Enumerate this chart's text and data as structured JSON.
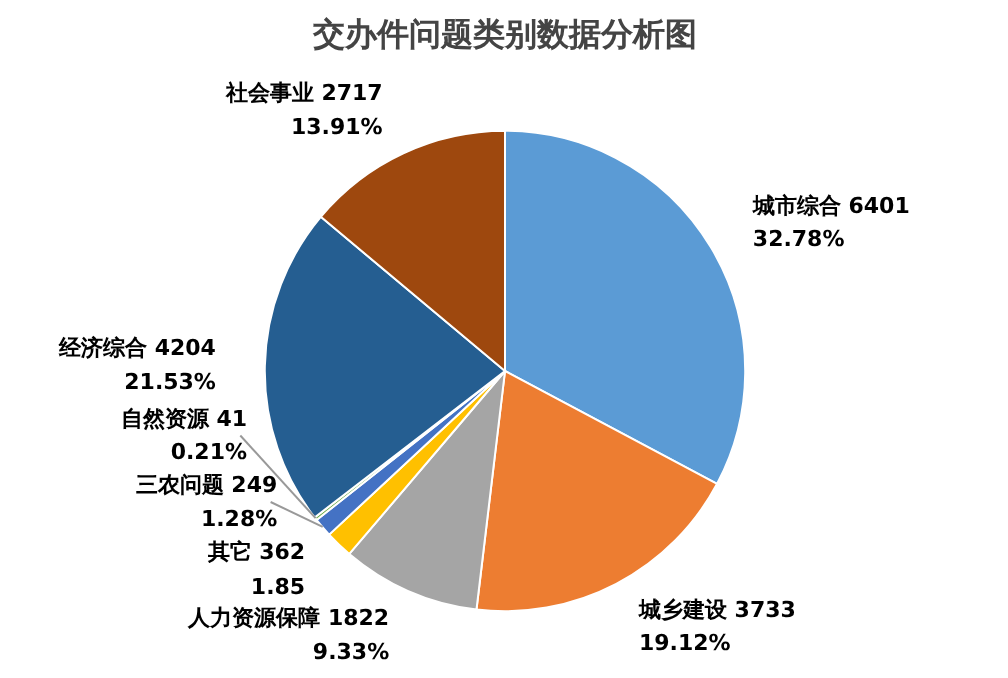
{
  "chart_data": {
    "type": "pie",
    "title": "交办件问题类别数据分析图",
    "categories": [
      "城市综合 6401",
      "城乡建设 3733",
      "人力资源保障 1822",
      "其它 362",
      "三农问题 249",
      "自然资源 41",
      "经济综合 4204",
      "社会事业 2717"
    ],
    "values": [
      32.78,
      19.12,
      9.33,
      1.85,
      1.28,
      0.21,
      21.53,
      13.91
    ],
    "colors": [
      "#5b9bd5",
      "#ed7d31",
      "#a5a5a5",
      "#ffc000",
      "#4472c4",
      "#70ad47",
      "#255e91",
      "#9e480e"
    ],
    "value_labels": [
      "32.78%",
      "19.12%",
      "9.33%",
      "1.85",
      "1.28%",
      "0.21%",
      "21.53%",
      "13.91%"
    ]
  }
}
